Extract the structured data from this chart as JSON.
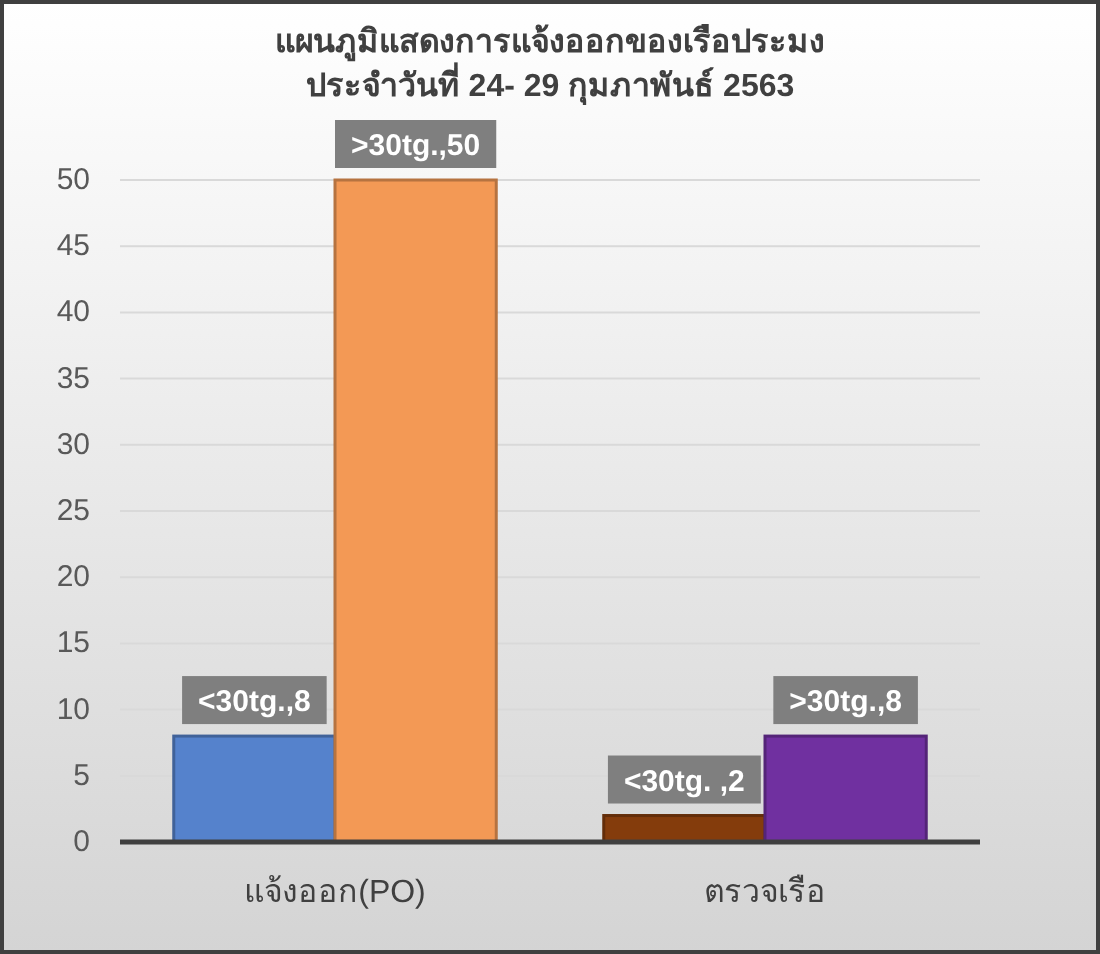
{
  "chart_data": {
    "type": "bar",
    "title": "แผนภูมิแสดงการแจ้งออกของเรือประมง\nประจำวันที่ 24- 29 กุมภาพันธ์ 2563",
    "categories": [
      "แจ้งออก(PO)",
      "ตรวจเรือ"
    ],
    "series": [
      {
        "colors": [
          "#5582cc",
          "#843c0c"
        ],
        "values": [
          8,
          2
        ],
        "value_labels": [
          "<30tg.,8",
          "<30tg. ,2"
        ]
      },
      {
        "colors": [
          "#f39955",
          "#7030a0"
        ],
        "values": [
          50,
          8
        ],
        "value_labels": [
          ">30tg.,50",
          ">30tg.,8"
        ]
      }
    ],
    "ylim": [
      0,
      50
    ],
    "yticks": [
      0,
      5,
      10,
      15,
      20,
      25,
      30,
      35,
      40,
      45,
      50
    ],
    "grid": "y"
  }
}
